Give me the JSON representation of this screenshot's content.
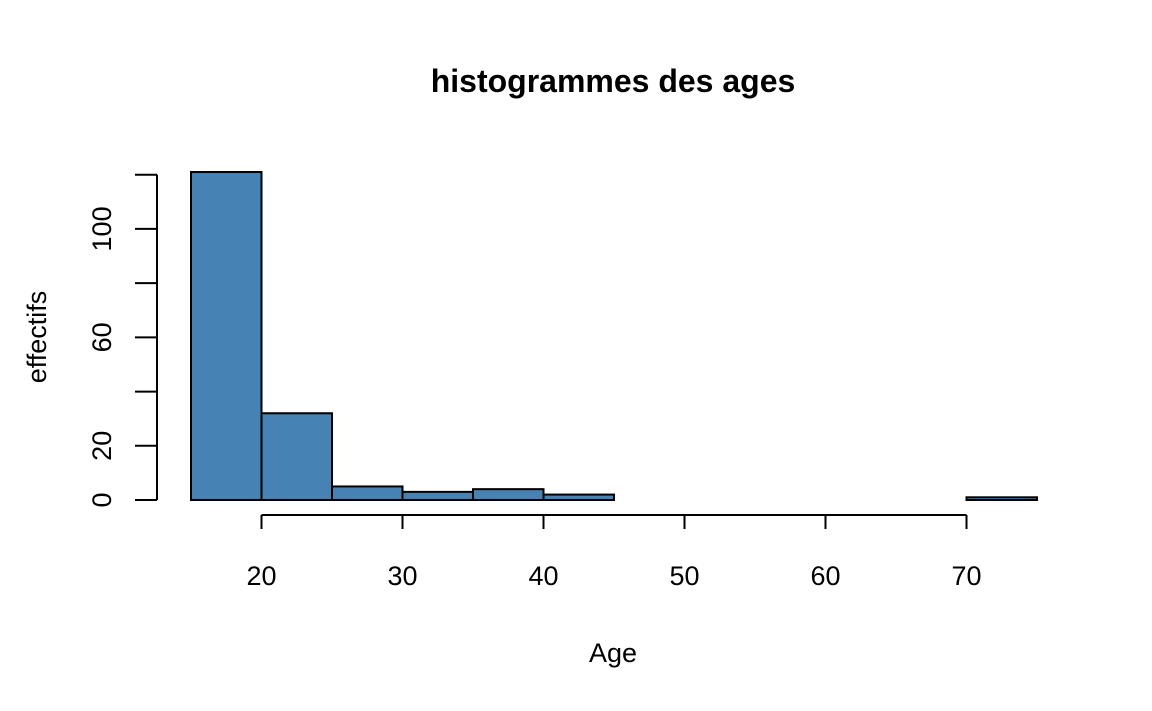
{
  "chart_data": {
    "type": "bar",
    "title": "histogrammes des ages",
    "xlabel": "Age",
    "ylabel": "effectifs",
    "bar_color": "#4682B4",
    "bins": [
      {
        "start": 15,
        "end": 20,
        "count": 121
      },
      {
        "start": 20,
        "end": 25,
        "count": 32
      },
      {
        "start": 25,
        "end": 30,
        "count": 5
      },
      {
        "start": 30,
        "end": 35,
        "count": 3
      },
      {
        "start": 35,
        "end": 40,
        "count": 4
      },
      {
        "start": 40,
        "end": 45,
        "count": 2
      },
      {
        "start": 45,
        "end": 50,
        "count": 0
      },
      {
        "start": 50,
        "end": 55,
        "count": 0
      },
      {
        "start": 55,
        "end": 60,
        "count": 0
      },
      {
        "start": 60,
        "end": 65,
        "count": 0
      },
      {
        "start": 65,
        "end": 70,
        "count": 0
      },
      {
        "start": 70,
        "end": 75,
        "count": 1
      }
    ],
    "xlim": [
      15,
      75
    ],
    "ylim": [
      0,
      121
    ],
    "x_ticks": [
      20,
      30,
      40,
      50,
      60,
      70
    ],
    "y_ticks": [
      0,
      20,
      40,
      60,
      80,
      100,
      120
    ],
    "y_tick_labels": [
      "0",
      "20",
      "",
      "60",
      "",
      "100",
      ""
    ],
    "grid": false,
    "legend": "none"
  }
}
